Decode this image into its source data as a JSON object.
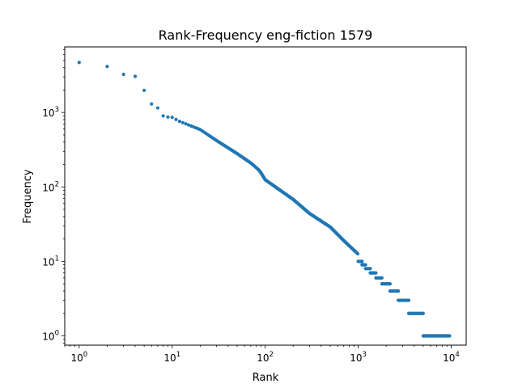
{
  "chart_data": {
    "type": "scatter",
    "title": "Rank-Frequency eng-fiction 1579",
    "xlabel": "Rank",
    "ylabel": "Frequency",
    "xscale": "log",
    "yscale": "log",
    "xlim": [
      0.7,
      14500
    ],
    "ylim": [
      0.75,
      7600
    ],
    "grid": false,
    "color": "#1f77b4",
    "x_ticks": [
      {
        "base": "10",
        "exp": "0",
        "value": 1
      },
      {
        "base": "10",
        "exp": "1",
        "value": 10
      },
      {
        "base": "10",
        "exp": "2",
        "value": 100
      },
      {
        "base": "10",
        "exp": "3",
        "value": 1000
      },
      {
        "base": "10",
        "exp": "4",
        "value": 10000
      }
    ],
    "y_ticks": [
      {
        "base": "10",
        "exp": "0",
        "value": 1
      },
      {
        "base": "10",
        "exp": "1",
        "value": 10
      },
      {
        "base": "10",
        "exp": "2",
        "value": 100
      },
      {
        "base": "10",
        "exp": "3",
        "value": 1000
      }
    ],
    "head_points": [
      [
        1,
        4700
      ],
      [
        2,
        4150
      ],
      [
        3,
        3250
      ],
      [
        4,
        3050
      ],
      [
        5,
        1980
      ],
      [
        6,
        1300
      ],
      [
        7,
        1150
      ],
      [
        8,
        900
      ],
      [
        9,
        870
      ],
      [
        10,
        860
      ]
    ],
    "curve": [
      [
        10,
        860
      ],
      [
        12,
        760
      ],
      [
        15,
        680
      ],
      [
        20,
        590
      ],
      [
        30,
        420
      ],
      [
        50,
        280
      ],
      [
        70,
        210
      ],
      [
        85,
        170
      ],
      [
        90,
        155
      ],
      [
        100,
        125
      ],
      [
        200,
        68
      ],
      [
        300,
        44
      ],
      [
        500,
        29
      ],
      [
        700,
        19
      ],
      [
        1000,
        12.5
      ],
      [
        1500,
        8
      ],
      [
        2000,
        6
      ],
      [
        3000,
        3.6
      ],
      [
        5000,
        2.1
      ],
      [
        10000,
        1
      ]
    ],
    "step_levels": [
      {
        "y": 10,
        "x_from": 1000,
        "x_to": 1100
      },
      {
        "y": 9,
        "x_from": 1100,
        "x_to": 1200
      },
      {
        "y": 8,
        "x_from": 1200,
        "x_to": 1350
      },
      {
        "y": 7,
        "x_from": 1350,
        "x_to": 1550
      },
      {
        "y": 6,
        "x_from": 1550,
        "x_to": 1800
      },
      {
        "y": 5,
        "x_from": 1800,
        "x_to": 2200
      },
      {
        "y": 4,
        "x_from": 2200,
        "x_to": 2700
      },
      {
        "y": 3,
        "x_from": 2700,
        "x_to": 3500
      },
      {
        "y": 2,
        "x_from": 3500,
        "x_to": 5000
      },
      {
        "y": 1,
        "x_from": 5000,
        "x_to": 9600
      }
    ]
  }
}
